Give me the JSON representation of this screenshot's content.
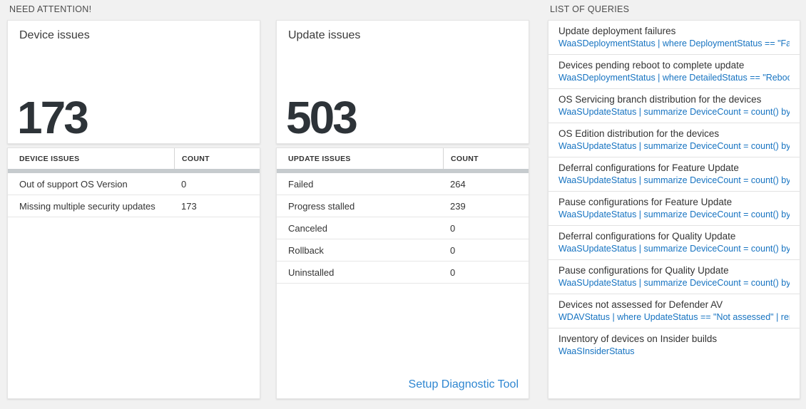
{
  "colors": {
    "page_background": "#f1f1f1",
    "card_background": "#ffffff",
    "big_number": "#2d3338",
    "table_header_bar": "#c6cbce",
    "query_code_blue": "#1673c1",
    "link_blue": "#2e86d1"
  },
  "need_attention": {
    "section_title": "NEED ATTENTION!",
    "device_card": {
      "title": "Device issues",
      "value": "173"
    },
    "update_card": {
      "title": "Update issues",
      "value": "503"
    },
    "device_table": {
      "columns": [
        "DEVICE ISSUES",
        "COUNT"
      ],
      "rows": [
        [
          "Out of support OS Version",
          "0"
        ],
        [
          "Missing multiple security updates",
          "173"
        ]
      ]
    },
    "update_table": {
      "columns": [
        "UPDATE ISSUES",
        "COUNT"
      ],
      "rows": [
        [
          "Failed",
          "264"
        ],
        [
          "Progress stalled",
          "239"
        ],
        [
          "Canceled",
          "0"
        ],
        [
          "Rollback",
          "0"
        ],
        [
          "Uninstalled",
          "0"
        ]
      ],
      "footer_link": "Setup Diagnostic Tool"
    }
  },
  "queries": {
    "section_title": "LIST OF QUERIES",
    "items": [
      {
        "title": "Update deployment failures",
        "query": "WaaSDeploymentStatus | where DeploymentStatus == \"Failed\" |..."
      },
      {
        "title": "Devices pending reboot to complete update",
        "query": "WaaSDeploymentStatus | where DetailedStatus == \"Reboot pend..."
      },
      {
        "title": "OS Servicing branch distribution for the devices",
        "query": "WaaSUpdateStatus | summarize DeviceCount = count() by OSSer..."
      },
      {
        "title": "OS Edition distribution for the devices",
        "query": "WaaSUpdateStatus | summarize DeviceCount = count() by OSEdit..."
      },
      {
        "title": "Deferral configurations for Feature Update",
        "query": "WaaSUpdateStatus | summarize DeviceCount = count() by Featur..."
      },
      {
        "title": "Pause configurations for Feature Update",
        "query": "WaaSUpdateStatus | summarize DeviceCount = count() by Featur..."
      },
      {
        "title": "Deferral configurations for Quality Update",
        "query": "WaaSUpdateStatus | summarize DeviceCount = count() by Qualit..."
      },
      {
        "title": "Pause configurations for Quality Update",
        "query": "WaaSUpdateStatus | summarize DeviceCount = count() by Qualit..."
      },
      {
        "title": "Devices not assessed for Defender AV",
        "query": "WDAVStatus | where UpdateStatus == \"Not assessed\" | render ta..."
      },
      {
        "title": "Inventory of devices on Insider builds",
        "query": "WaaSInsiderStatus"
      }
    ]
  }
}
